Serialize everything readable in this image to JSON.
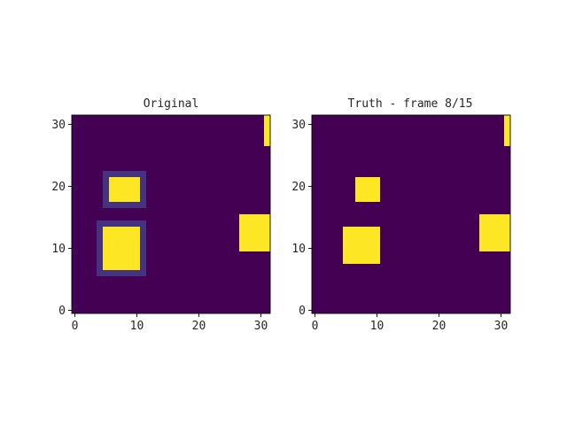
{
  "colormap": {
    "name": "viridis",
    "background": "#440154",
    "foreground": "#fde725",
    "ring": "#46337f"
  },
  "chart_data": [
    {
      "type": "heatmap",
      "title": "Original",
      "grid_size": 32,
      "xlim": [
        -0.5,
        31.5
      ],
      "ylim": [
        -0.5,
        31.5
      ],
      "origin": "lower",
      "x_ticks": [
        0,
        10,
        20,
        30
      ],
      "y_ticks": [
        0,
        10,
        20,
        30
      ],
      "x_tick_labels": [
        "0",
        "10",
        "20",
        "30"
      ],
      "y_tick_labels": [
        "0",
        "10",
        "20",
        "30"
      ],
      "objects": [
        {
          "x0": 31,
          "x1": 31,
          "y0": 27,
          "y1": 31,
          "value": 1
        },
        {
          "x0": 5,
          "x1": 10,
          "y0": 7,
          "y1": 13,
          "value": 1,
          "ring_value": 0.1
        },
        {
          "x0": 6,
          "x1": 10,
          "y0": 18,
          "y1": 21,
          "value": 1,
          "ring_value": 0.1
        },
        {
          "x0": 27,
          "x1": 31,
          "y0": 10,
          "y1": 15,
          "value": 1
        }
      ]
    },
    {
      "type": "heatmap",
      "title": "Truth - frame 8/15",
      "grid_size": 32,
      "xlim": [
        -0.5,
        31.5
      ],
      "ylim": [
        -0.5,
        31.5
      ],
      "origin": "lower",
      "x_ticks": [
        0,
        10,
        20,
        30
      ],
      "y_ticks": [
        0,
        10,
        20,
        30
      ],
      "x_tick_labels": [
        "0",
        "10",
        "20",
        "30"
      ],
      "y_tick_labels": [
        "0",
        "10",
        "20",
        "30"
      ],
      "objects": [
        {
          "x0": 31,
          "x1": 31,
          "y0": 27,
          "y1": 31,
          "value": 1
        },
        {
          "x0": 5,
          "x1": 10,
          "y0": 8,
          "y1": 13,
          "value": 1
        },
        {
          "x0": 7,
          "x1": 10,
          "y0": 18,
          "y1": 21,
          "value": 1
        },
        {
          "x0": 27,
          "x1": 31,
          "y0": 10,
          "y1": 15,
          "value": 1
        }
      ]
    }
  ]
}
